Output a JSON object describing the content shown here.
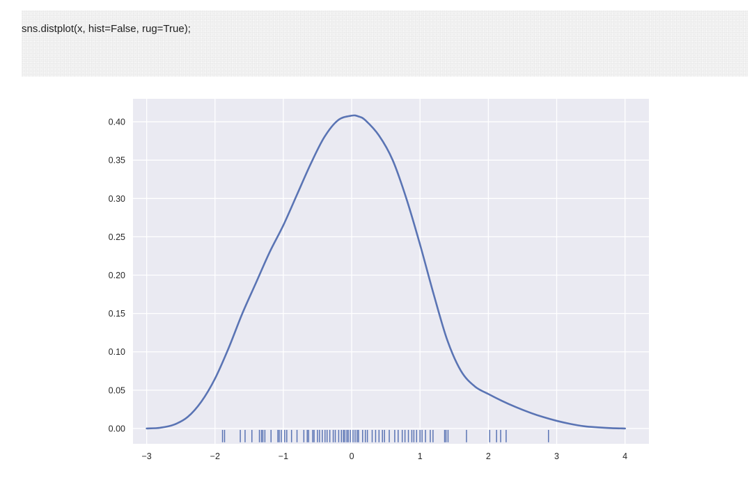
{
  "code_cell": {
    "code": "sns.distplot(x, hist=False, rug=True);"
  },
  "colors": {
    "plot_background": "#eaeaf2",
    "grid": "#ffffff",
    "line": "#5a74b4",
    "rug": "#5a74b4",
    "code_background": "#f2f2f2"
  },
  "chart_data": {
    "type": "line",
    "title": "",
    "xlabel": "",
    "ylabel": "",
    "xlim": [
      -3.2,
      4.35
    ],
    "ylim": [
      -0.02,
      0.43
    ],
    "grid": true,
    "legend": "none",
    "x_ticks": [
      -3,
      -2,
      -1,
      0,
      1,
      2,
      3,
      4
    ],
    "x_tick_labels": [
      "−3",
      "−2",
      "−1",
      "0",
      "1",
      "2",
      "3",
      "4"
    ],
    "y_ticks": [
      0.0,
      0.05,
      0.1,
      0.15,
      0.2,
      0.25,
      0.3,
      0.35,
      0.4
    ],
    "y_tick_labels": [
      "0.00",
      "0.05",
      "0.10",
      "0.15",
      "0.20",
      "0.25",
      "0.30",
      "0.35",
      "0.40"
    ],
    "series": [
      {
        "kind": "kde",
        "x": [
          -3.0,
          -2.8,
          -2.6,
          -2.4,
          -2.2,
          -2.0,
          -1.8,
          -1.6,
          -1.4,
          -1.2,
          -1.0,
          -0.8,
          -0.6,
          -0.4,
          -0.2,
          0.0,
          0.1,
          0.2,
          0.4,
          0.6,
          0.8,
          1.0,
          1.2,
          1.4,
          1.6,
          1.8,
          2.0,
          2.2,
          2.4,
          2.6,
          2.8,
          3.0,
          3.2,
          3.4,
          3.6,
          3.8,
          4.0
        ],
        "y": [
          0.0,
          0.001,
          0.005,
          0.015,
          0.035,
          0.065,
          0.105,
          0.15,
          0.19,
          0.23,
          0.265,
          0.305,
          0.345,
          0.38,
          0.402,
          0.408,
          0.407,
          0.402,
          0.382,
          0.35,
          0.3,
          0.24,
          0.175,
          0.115,
          0.075,
          0.055,
          0.045,
          0.036,
          0.028,
          0.021,
          0.015,
          0.01,
          0.006,
          0.003,
          0.0015,
          0.0005,
          0.0
        ]
      }
    ],
    "rug": {
      "y0": -0.018,
      "y1": 0.0,
      "values": [
        -1.89,
        -1.86,
        -1.63,
        -1.56,
        -1.46,
        -1.35,
        -1.32,
        -1.3,
        -1.27,
        -1.18,
        -1.08,
        -1.06,
        -1.03,
        -0.98,
        -0.95,
        -0.88,
        -0.8,
        -0.7,
        -0.65,
        -0.63,
        -0.57,
        -0.55,
        -0.5,
        -0.47,
        -0.43,
        -0.39,
        -0.36,
        -0.32,
        -0.27,
        -0.24,
        -0.19,
        -0.15,
        -0.12,
        -0.1,
        -0.07,
        -0.05,
        -0.02,
        0.02,
        0.05,
        0.08,
        0.1,
        0.16,
        0.2,
        0.23,
        0.3,
        0.35,
        0.4,
        0.45,
        0.48,
        0.55,
        0.63,
        0.68,
        0.74,
        0.78,
        0.83,
        0.88,
        0.91,
        0.95,
        1.0,
        1.03,
        1.08,
        1.15,
        1.19,
        1.36,
        1.38,
        1.41,
        1.68,
        2.02,
        2.12,
        2.18,
        2.26,
        2.88
      ]
    }
  }
}
